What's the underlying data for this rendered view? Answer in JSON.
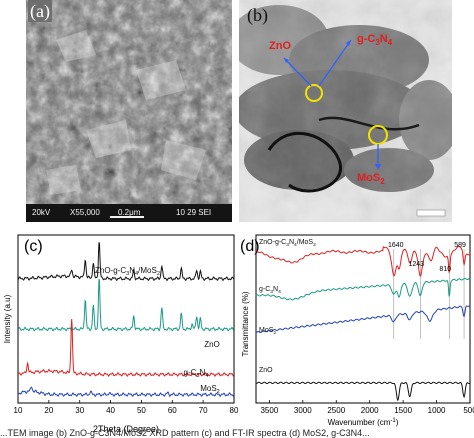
{
  "panels": {
    "a": {
      "label": "(a)",
      "databar": [
        "20kV",
        "X55,000",
        "0.2μm",
        "10 29 SEI"
      ]
    },
    "b": {
      "label": "(b)",
      "annotations": {
        "zno": "ZnO",
        "gc3n4": "g-C",
        "gc3n4_sub": "3",
        "gc3n4_n": "N",
        "gc3n4_sub2": "4",
        "mos2": "MoS",
        "mos2_sub": "2"
      }
    }
  },
  "chart_data": [
    {
      "panel": "(c)",
      "type": "line",
      "xlabel": "2Theta (Degree)",
      "ylabel": "Intensity (a.u)",
      "xlim": [
        10,
        80
      ],
      "xticks": [
        10,
        20,
        30,
        40,
        50,
        60,
        70,
        80
      ],
      "yticks_shown": false,
      "series": [
        {
          "name": "ZnO-g-C3N4/MoS2",
          "color": "#111111",
          "offset": 0.74,
          "peaks": [
            [
              27.4,
              0.04
            ],
            [
              31.8,
              0.11
            ],
            [
              34.4,
              0.09
            ],
            [
              36.3,
              0.22
            ],
            [
              47.5,
              0.05
            ],
            [
              56.6,
              0.08
            ],
            [
              62.9,
              0.06
            ],
            [
              67.9,
              0.05
            ],
            [
              69.1,
              0.04
            ]
          ]
        },
        {
          "name": "ZnO",
          "color": "#1a9a8a",
          "offset": 0.44,
          "peaks": [
            [
              31.8,
              0.18
            ],
            [
              34.4,
              0.14
            ],
            [
              36.3,
              0.3
            ],
            [
              47.5,
              0.08
            ],
            [
              56.6,
              0.13
            ],
            [
              62.9,
              0.09
            ],
            [
              66.4,
              0.03
            ],
            [
              67.9,
              0.08
            ],
            [
              69.1,
              0.06
            ]
          ]
        },
        {
          "name": "g-C3N4",
          "color": "#e02020",
          "offset": 0.17,
          "peaks": [
            [
              13.1,
              0.06
            ],
            [
              27.4,
              0.33
            ]
          ]
        },
        {
          "name": "MoS2",
          "color": "#2040c0",
          "offset": 0.05,
          "peaks": [
            [
              14.4,
              0.03
            ],
            [
              33.5,
              0.02
            ],
            [
              39.5,
              0.01
            ],
            [
              58.5,
              0.01
            ]
          ]
        }
      ]
    },
    {
      "panel": "(d)",
      "type": "line",
      "xlabel": "Wavenumber (cm-1)",
      "ylabel": "Transmittance (%)",
      "xlim": [
        3700,
        500
      ],
      "xticks": [
        3500,
        3000,
        2500,
        2000,
        1500,
        1000,
        500
      ],
      "peak_labels": [
        "1640",
        "1243",
        "810",
        "589"
      ],
      "peak_positions": [
        1640,
        1243,
        810,
        589
      ],
      "series": [
        {
          "name": "ZnO-g-C3N4/MoS2",
          "color": "#e02020",
          "base": 0.9
        },
        {
          "name": "g-C3N4",
          "color": "#1a9a8a",
          "base": 0.64
        },
        {
          "name": "MoS2",
          "color": "#2040c0",
          "base": 0.42
        },
        {
          "name": "ZnO",
          "color": "#111111",
          "base": 0.12
        }
      ]
    }
  ],
  "caption": "...TEM image (b) ZnO-g-C3N4/MoS2 XRD pattern (c) and FT-IR spectra (d) MoS2, g-C3N4..."
}
